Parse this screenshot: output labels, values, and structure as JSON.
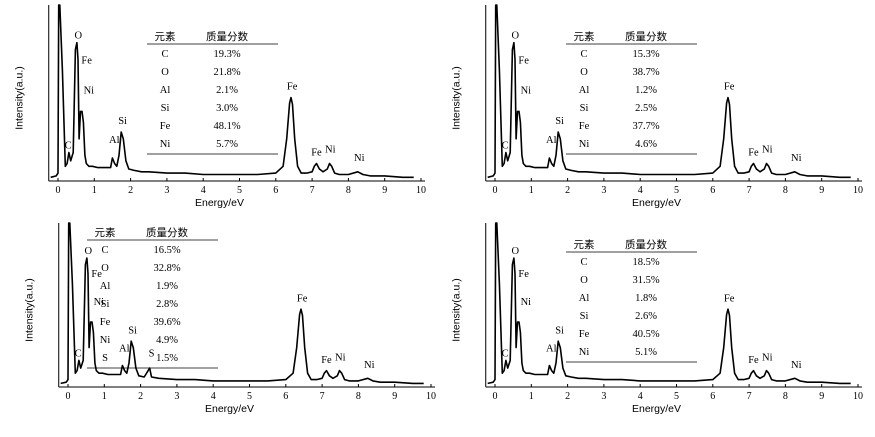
{
  "chart_data": [
    {
      "type": "line",
      "xlabel": "Energy/eV",
      "ylabel": "Intensity(a.u.)",
      "xlim": [
        0,
        10
      ],
      "xticks": [
        0,
        1,
        2,
        3,
        4,
        5,
        6,
        7,
        8,
        9,
        10
      ],
      "series": [
        {
          "x": [
            -0.2,
            -0.05,
            0.0,
            0.02,
            0.05,
            0.12,
            0.2,
            0.25,
            0.3,
            0.35,
            0.42,
            0.48,
            0.52,
            0.55,
            0.58,
            0.62,
            0.66,
            0.7,
            0.74,
            0.78,
            0.85,
            0.95,
            1.1,
            1.3,
            1.45,
            1.5,
            1.56,
            1.62,
            1.68,
            1.74,
            1.8,
            1.87,
            1.95,
            2.1,
            2.3,
            2.5,
            3.0,
            3.5,
            4.0,
            4.5,
            5.0,
            5.5,
            6.0,
            6.2,
            6.3,
            6.38,
            6.42,
            6.46,
            6.52,
            6.6,
            6.7,
            6.85,
            7.0,
            7.06,
            7.12,
            7.2,
            7.3,
            7.42,
            7.48,
            7.54,
            7.62,
            7.75,
            8.0,
            8.26,
            8.4,
            8.6,
            9.0,
            9.5,
            9.8
          ],
          "values": [
            0.02,
            0.03,
            0.05,
            1.5,
            1.5,
            0.8,
            0.1,
            0.12,
            0.2,
            0.14,
            0.2,
            0.95,
            1.0,
            0.88,
            0.3,
            0.5,
            0.5,
            0.42,
            0.18,
            0.12,
            0.1,
            0.1,
            0.09,
            0.09,
            0.09,
            0.16,
            0.12,
            0.1,
            0.18,
            0.35,
            0.3,
            0.14,
            0.08,
            0.07,
            0.06,
            0.06,
            0.05,
            0.05,
            0.04,
            0.04,
            0.04,
            0.04,
            0.05,
            0.1,
            0.3,
            0.56,
            0.6,
            0.55,
            0.3,
            0.1,
            0.05,
            0.05,
            0.06,
            0.1,
            0.12,
            0.08,
            0.06,
            0.08,
            0.12,
            0.1,
            0.05,
            0.04,
            0.04,
            0.06,
            0.04,
            0.03,
            0.03,
            0.02,
            0.02
          ]
        }
      ],
      "peaks": [
        {
          "label": "O",
          "x": 0.56,
          "y": 1.0
        },
        {
          "label": "Fe",
          "x": 0.79,
          "y": 0.82
        },
        {
          "label": "Ni",
          "x": 0.85,
          "y": 0.6
        },
        {
          "label": "C",
          "x": 0.28,
          "y": 0.2
        },
        {
          "label": "Al",
          "x": 1.55,
          "y": 0.24
        },
        {
          "label": "Si",
          "x": 1.78,
          "y": 0.38
        },
        {
          "label": "Fe",
          "x": 6.45,
          "y": 0.63
        },
        {
          "label": "Fe",
          "x": 7.12,
          "y": 0.15
        },
        {
          "label": "Ni",
          "x": 7.5,
          "y": 0.17
        },
        {
          "label": "Ni",
          "x": 8.3,
          "y": 0.11
        }
      ],
      "table": {
        "headers": [
          "元素",
          "质量分数"
        ],
        "rows": [
          [
            "C",
            "19.3%"
          ],
          [
            "O",
            "21.8%"
          ],
          [
            "Al",
            "2.1%"
          ],
          [
            "Si",
            "3.0%"
          ],
          [
            "Fe",
            "48.1%"
          ],
          [
            "Ni",
            "5.7%"
          ]
        ]
      }
    },
    {
      "type": "line",
      "xlabel": "Energy/eV",
      "ylabel": "Intensity(a.u.)",
      "xlim": [
        0,
        10
      ],
      "xticks": [
        0,
        1,
        2,
        3,
        4,
        5,
        6,
        7,
        8,
        9,
        10
      ],
      "series": [
        {
          "x": [
            -0.2,
            -0.05,
            0.0,
            0.02,
            0.05,
            0.12,
            0.2,
            0.25,
            0.3,
            0.35,
            0.42,
            0.48,
            0.52,
            0.55,
            0.58,
            0.62,
            0.66,
            0.7,
            0.74,
            0.78,
            0.85,
            0.95,
            1.1,
            1.3,
            1.45,
            1.5,
            1.56,
            1.62,
            1.68,
            1.74,
            1.8,
            1.87,
            1.95,
            2.1,
            2.3,
            2.5,
            3.0,
            3.5,
            4.0,
            4.5,
            5.0,
            5.5,
            6.0,
            6.2,
            6.3,
            6.38,
            6.42,
            6.46,
            6.52,
            6.6,
            6.7,
            6.85,
            7.0,
            7.06,
            7.12,
            7.2,
            7.3,
            7.42,
            7.48,
            7.54,
            7.62,
            7.75,
            8.0,
            8.26,
            8.4,
            8.6,
            9.0,
            9.5,
            9.8
          ],
          "values": [
            0.02,
            0.03,
            0.05,
            1.5,
            1.5,
            0.8,
            0.1,
            0.12,
            0.2,
            0.14,
            0.2,
            0.95,
            1.0,
            0.88,
            0.3,
            0.5,
            0.5,
            0.42,
            0.18,
            0.12,
            0.1,
            0.1,
            0.09,
            0.09,
            0.09,
            0.16,
            0.12,
            0.1,
            0.18,
            0.35,
            0.3,
            0.14,
            0.08,
            0.07,
            0.06,
            0.06,
            0.05,
            0.05,
            0.04,
            0.04,
            0.04,
            0.04,
            0.05,
            0.1,
            0.3,
            0.56,
            0.6,
            0.55,
            0.3,
            0.1,
            0.05,
            0.05,
            0.06,
            0.1,
            0.12,
            0.08,
            0.06,
            0.08,
            0.12,
            0.1,
            0.05,
            0.04,
            0.04,
            0.06,
            0.04,
            0.03,
            0.03,
            0.02,
            0.02
          ]
        }
      ],
      "peaks": [
        {
          "label": "O",
          "x": 0.56,
          "y": 1.0
        },
        {
          "label": "Fe",
          "x": 0.79,
          "y": 0.82
        },
        {
          "label": "Ni",
          "x": 0.85,
          "y": 0.6
        },
        {
          "label": "C",
          "x": 0.28,
          "y": 0.2
        },
        {
          "label": "Al",
          "x": 1.55,
          "y": 0.24
        },
        {
          "label": "Si",
          "x": 1.78,
          "y": 0.38
        },
        {
          "label": "Fe",
          "x": 6.45,
          "y": 0.63
        },
        {
          "label": "Fe",
          "x": 7.12,
          "y": 0.15
        },
        {
          "label": "Ni",
          "x": 7.5,
          "y": 0.17
        },
        {
          "label": "Ni",
          "x": 8.3,
          "y": 0.11
        }
      ],
      "table": {
        "headers": [
          "元素",
          "质量分数"
        ],
        "rows": [
          [
            "C",
            "15.3%"
          ],
          [
            "O",
            "38.7%"
          ],
          [
            "Al",
            "1.2%"
          ],
          [
            "Si",
            "2.5%"
          ],
          [
            "Fe",
            "37.7%"
          ],
          [
            "Ni",
            "4.6%"
          ]
        ]
      }
    },
    {
      "type": "line",
      "xlabel": "Energy/eV",
      "ylabel": "Intensity(a.u.)",
      "xlim": [
        0,
        10
      ],
      "xticks": [
        0,
        1,
        2,
        3,
        4,
        5,
        6,
        7,
        8,
        9,
        10
      ],
      "series": [
        {
          "x": [
            -0.2,
            -0.05,
            0.0,
            0.02,
            0.05,
            0.12,
            0.2,
            0.25,
            0.3,
            0.35,
            0.42,
            0.48,
            0.52,
            0.55,
            0.58,
            0.62,
            0.66,
            0.7,
            0.74,
            0.78,
            0.85,
            0.95,
            1.1,
            1.3,
            1.45,
            1.5,
            1.56,
            1.62,
            1.68,
            1.74,
            1.8,
            1.87,
            1.95,
            2.1,
            2.25,
            2.3,
            2.5,
            3.0,
            3.5,
            4.0,
            4.5,
            5.0,
            5.5,
            6.0,
            6.2,
            6.3,
            6.38,
            6.42,
            6.46,
            6.52,
            6.6,
            6.7,
            6.85,
            7.0,
            7.06,
            7.12,
            7.2,
            7.3,
            7.42,
            7.48,
            7.54,
            7.62,
            7.75,
            8.0,
            8.26,
            8.4,
            8.6,
            9.0,
            9.5,
            9.8
          ],
          "values": [
            0.02,
            0.03,
            0.05,
            1.5,
            1.5,
            0.8,
            0.1,
            0.12,
            0.2,
            0.14,
            0.2,
            0.95,
            1.0,
            0.88,
            0.3,
            0.5,
            0.5,
            0.42,
            0.18,
            0.12,
            0.1,
            0.1,
            0.09,
            0.09,
            0.09,
            0.16,
            0.12,
            0.1,
            0.18,
            0.35,
            0.3,
            0.14,
            0.08,
            0.07,
            0.14,
            0.07,
            0.06,
            0.05,
            0.05,
            0.04,
            0.04,
            0.04,
            0.04,
            0.05,
            0.1,
            0.3,
            0.56,
            0.6,
            0.55,
            0.3,
            0.1,
            0.05,
            0.05,
            0.06,
            0.1,
            0.12,
            0.08,
            0.06,
            0.08,
            0.12,
            0.1,
            0.05,
            0.04,
            0.04,
            0.06,
            0.04,
            0.03,
            0.03,
            0.02,
            0.02
          ]
        }
      ],
      "peaks": [
        {
          "label": "O",
          "x": 0.56,
          "y": 1.0
        },
        {
          "label": "Fe",
          "x": 0.79,
          "y": 0.82
        },
        {
          "label": "Ni",
          "x": 0.85,
          "y": 0.6
        },
        {
          "label": "C",
          "x": 0.28,
          "y": 0.2
        },
        {
          "label": "Al",
          "x": 1.55,
          "y": 0.24
        },
        {
          "label": "Si",
          "x": 1.78,
          "y": 0.38
        },
        {
          "label": "S",
          "x": 2.3,
          "y": 0.2
        },
        {
          "label": "Fe",
          "x": 6.45,
          "y": 0.63
        },
        {
          "label": "Fe",
          "x": 7.12,
          "y": 0.15
        },
        {
          "label": "Ni",
          "x": 7.5,
          "y": 0.17
        },
        {
          "label": "Ni",
          "x": 8.3,
          "y": 0.11
        }
      ],
      "table": {
        "headers": [
          "元素",
          "质量分数"
        ],
        "rows": [
          [
            "C",
            "16.5%"
          ],
          [
            "O",
            "32.8%"
          ],
          [
            "Al",
            "1.9%"
          ],
          [
            "Si",
            "2.8%"
          ],
          [
            "Fe",
            "39.6%"
          ],
          [
            "Ni",
            "4.9%"
          ],
          [
            "S",
            "1.5%"
          ]
        ]
      }
    },
    {
      "type": "line",
      "xlabel": "Energy/eV",
      "ylabel": "Intensity(a.u.)",
      "xlim": [
        0,
        10
      ],
      "xticks": [
        0,
        1,
        2,
        3,
        4,
        5,
        6,
        7,
        8,
        9,
        10
      ],
      "series": [
        {
          "x": [
            -0.2,
            -0.05,
            0.0,
            0.02,
            0.05,
            0.12,
            0.2,
            0.25,
            0.3,
            0.35,
            0.42,
            0.48,
            0.52,
            0.55,
            0.58,
            0.62,
            0.66,
            0.7,
            0.74,
            0.78,
            0.85,
            0.95,
            1.1,
            1.3,
            1.45,
            1.5,
            1.56,
            1.62,
            1.68,
            1.74,
            1.8,
            1.87,
            1.95,
            2.1,
            2.3,
            2.5,
            3.0,
            3.5,
            4.0,
            4.5,
            5.0,
            5.5,
            6.0,
            6.2,
            6.3,
            6.38,
            6.42,
            6.46,
            6.52,
            6.6,
            6.7,
            6.85,
            7.0,
            7.06,
            7.12,
            7.2,
            7.3,
            7.42,
            7.48,
            7.54,
            7.62,
            7.75,
            8.0,
            8.26,
            8.4,
            8.6,
            9.0,
            9.5,
            9.8
          ],
          "values": [
            0.02,
            0.03,
            0.05,
            1.5,
            1.5,
            0.8,
            0.1,
            0.12,
            0.2,
            0.14,
            0.2,
            0.95,
            1.0,
            0.88,
            0.3,
            0.5,
            0.5,
            0.42,
            0.18,
            0.12,
            0.1,
            0.1,
            0.09,
            0.09,
            0.09,
            0.16,
            0.12,
            0.1,
            0.18,
            0.35,
            0.3,
            0.14,
            0.08,
            0.07,
            0.06,
            0.06,
            0.05,
            0.05,
            0.04,
            0.04,
            0.04,
            0.04,
            0.05,
            0.1,
            0.3,
            0.56,
            0.6,
            0.55,
            0.3,
            0.1,
            0.05,
            0.05,
            0.06,
            0.1,
            0.12,
            0.08,
            0.06,
            0.08,
            0.12,
            0.1,
            0.05,
            0.04,
            0.04,
            0.06,
            0.04,
            0.03,
            0.03,
            0.02,
            0.02
          ]
        }
      ],
      "peaks": [
        {
          "label": "O",
          "x": 0.56,
          "y": 1.0
        },
        {
          "label": "Fe",
          "x": 0.79,
          "y": 0.82
        },
        {
          "label": "Ni",
          "x": 0.85,
          "y": 0.6
        },
        {
          "label": "C",
          "x": 0.28,
          "y": 0.2
        },
        {
          "label": "Al",
          "x": 1.55,
          "y": 0.24
        },
        {
          "label": "Si",
          "x": 1.78,
          "y": 0.38
        },
        {
          "label": "Fe",
          "x": 6.45,
          "y": 0.63
        },
        {
          "label": "Fe",
          "x": 7.12,
          "y": 0.15
        },
        {
          "label": "Ni",
          "x": 7.5,
          "y": 0.17
        },
        {
          "label": "Ni",
          "x": 8.3,
          "y": 0.11
        }
      ],
      "table": {
        "headers": [
          "元素",
          "质量分数"
        ],
        "rows": [
          [
            "C",
            "18.5%"
          ],
          [
            "O",
            "31.5%"
          ],
          [
            "Al",
            "1.8%"
          ],
          [
            "Si",
            "2.6%"
          ],
          [
            "Fe",
            "40.5%"
          ],
          [
            "Ni",
            "5.1%"
          ]
        ]
      }
    }
  ]
}
